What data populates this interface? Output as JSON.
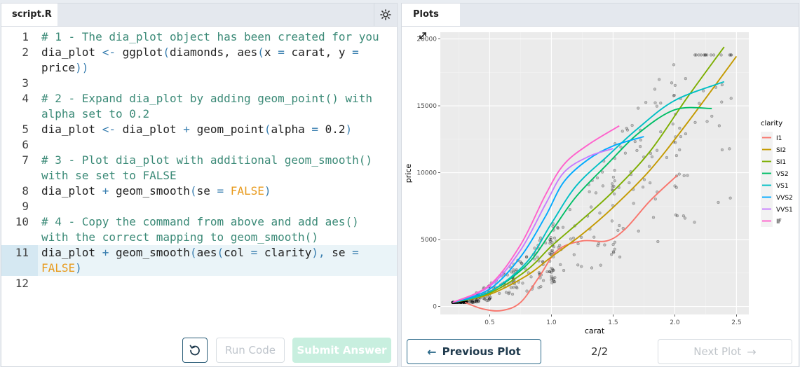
{
  "editor": {
    "tab_label": "script.R",
    "lines": [
      {
        "n": "1",
        "tokens": [
          [
            "cm",
            "# 1 - The dia_plot object has been created for you"
          ]
        ]
      },
      {
        "n": "2",
        "tokens": [
          [
            "fn",
            "dia_plot "
          ],
          [
            "op",
            "<-"
          ],
          [
            "fn",
            " ggplot"
          ],
          [
            "op",
            "("
          ],
          [
            "fn",
            "diamonds, aes"
          ],
          [
            "op",
            "("
          ],
          [
            "fn",
            "x "
          ],
          [
            "op",
            "="
          ],
          [
            "fn",
            " carat, y "
          ],
          [
            "op",
            "="
          ],
          [
            "fn",
            "\nprice"
          ],
          [
            "op",
            "))"
          ]
        ]
      },
      {
        "n": "3",
        "tokens": [
          [
            "fn",
            " "
          ]
        ]
      },
      {
        "n": "4",
        "tokens": [
          [
            "cm",
            "# 2 - Expand dia_plot by adding geom_point() with\nalpha set to 0.2"
          ]
        ]
      },
      {
        "n": "5",
        "tokens": [
          [
            "fn",
            "dia_plot "
          ],
          [
            "op",
            "<-"
          ],
          [
            "fn",
            " dia_plot "
          ],
          [
            "op",
            "+"
          ],
          [
            "fn",
            " geom_point"
          ],
          [
            "op",
            "("
          ],
          [
            "fn",
            "alpha "
          ],
          [
            "op",
            "="
          ],
          [
            "num",
            " 0.2"
          ],
          [
            "op",
            ")"
          ]
        ]
      },
      {
        "n": "6",
        "tokens": [
          [
            "fn",
            " "
          ]
        ]
      },
      {
        "n": "7",
        "tokens": [
          [
            "cm",
            "# 3 - Plot dia_plot with additional geom_smooth()\nwith se set to FALSE"
          ]
        ]
      },
      {
        "n": "8",
        "tokens": [
          [
            "fn",
            "dia_plot "
          ],
          [
            "op",
            "+"
          ],
          [
            "fn",
            " geom_smooth"
          ],
          [
            "op",
            "("
          ],
          [
            "fn",
            "se "
          ],
          [
            "op",
            "="
          ],
          [
            "kw",
            " FALSE"
          ],
          [
            "op",
            ")"
          ]
        ]
      },
      {
        "n": "9",
        "tokens": [
          [
            "fn",
            " "
          ]
        ]
      },
      {
        "n": "10",
        "tokens": [
          [
            "cm",
            "# 4 - Copy the command from above and add aes()\nwith the correct mapping to geom_smooth()"
          ]
        ]
      },
      {
        "n": "11",
        "tokens": [
          [
            "fn",
            "dia_plot "
          ],
          [
            "op",
            "+"
          ],
          [
            "fn",
            " geom_smooth"
          ],
          [
            "op",
            "("
          ],
          [
            "fn",
            "aes"
          ],
          [
            "op",
            "("
          ],
          [
            "fn",
            "col "
          ],
          [
            "op",
            "="
          ],
          [
            "fn",
            " clarity"
          ],
          [
            "op",
            "),"
          ],
          [
            "fn",
            " se "
          ],
          [
            "op",
            "="
          ],
          [
            "kw",
            "\nFALSE"
          ],
          [
            "op",
            ")"
          ]
        ]
      },
      {
        "n": "12",
        "tokens": [
          [
            "fn",
            " "
          ]
        ]
      }
    ],
    "active_line": "11"
  },
  "buttons": {
    "run_label": "Run Code",
    "submit_label": "Submit Answer",
    "prev_label": "Previous Plot",
    "next_label": "Next Plot"
  },
  "plots": {
    "tab_label": "Plots",
    "pager": "2/2"
  },
  "chart_data": {
    "type": "line",
    "xlabel": "carat",
    "ylabel": "price",
    "x_ticks": [
      "0.5",
      "1.0",
      "1.5",
      "2.0",
      "2.5"
    ],
    "y_ticks": [
      "0",
      "5000",
      "10000",
      "15000",
      "20000"
    ],
    "xlim": [
      0.1,
      2.6
    ],
    "ylim": [
      -600,
      20500
    ],
    "grid": true,
    "legend_title": "clarity",
    "legend_position": "right",
    "series": [
      {
        "name": "I1",
        "color": "#f8766d",
        "points": [
          [
            0.3,
            300
          ],
          [
            0.45,
            -200
          ],
          [
            0.6,
            -300
          ],
          [
            0.75,
            300
          ],
          [
            0.9,
            2200
          ],
          [
            1.05,
            4200
          ],
          [
            1.25,
            4900
          ],
          [
            1.45,
            4900
          ],
          [
            1.6,
            5800
          ],
          [
            1.8,
            7900
          ],
          [
            2.02,
            9800
          ]
        ]
      },
      {
        "name": "SI2",
        "color": "#c49a00",
        "points": [
          [
            0.2,
            300
          ],
          [
            0.5,
            900
          ],
          [
            0.8,
            2300
          ],
          [
            1.0,
            3700
          ],
          [
            1.25,
            5400
          ],
          [
            1.5,
            7400
          ],
          [
            1.8,
            10200
          ],
          [
            2.1,
            13700
          ],
          [
            2.5,
            18700
          ]
        ]
      },
      {
        "name": "SI1",
        "color": "#7cae00",
        "points": [
          [
            0.2,
            300
          ],
          [
            0.5,
            1000
          ],
          [
            0.8,
            2700
          ],
          [
            1.0,
            4500
          ],
          [
            1.25,
            6500
          ],
          [
            1.5,
            8600
          ],
          [
            1.8,
            11600
          ],
          [
            2.1,
            15600
          ],
          [
            2.4,
            19400
          ]
        ]
      },
      {
        "name": "VS2",
        "color": "#00be67",
        "points": [
          [
            0.2,
            300
          ],
          [
            0.5,
            1100
          ],
          [
            0.8,
            3100
          ],
          [
            1.0,
            5600
          ],
          [
            1.2,
            8200
          ],
          [
            1.45,
            10600
          ],
          [
            1.7,
            12900
          ],
          [
            2.0,
            14700
          ],
          [
            2.3,
            14800
          ]
        ]
      },
      {
        "name": "VS1",
        "color": "#00bfc4",
        "points": [
          [
            0.2,
            300
          ],
          [
            0.5,
            1100
          ],
          [
            0.8,
            3300
          ],
          [
            1.0,
            6200
          ],
          [
            1.2,
            9000
          ],
          [
            1.45,
            11200
          ],
          [
            1.7,
            13300
          ],
          [
            2.0,
            15400
          ],
          [
            2.4,
            16800
          ]
        ]
      },
      {
        "name": "VVS2",
        "color": "#00a9ff",
        "points": [
          [
            0.2,
            300
          ],
          [
            0.5,
            1300
          ],
          [
            0.75,
            3700
          ],
          [
            0.95,
            6700
          ],
          [
            1.1,
            9300
          ],
          [
            1.3,
            11000
          ],
          [
            1.5,
            12000
          ],
          [
            1.75,
            12700
          ]
        ]
      },
      {
        "name": "VVS1",
        "color": "#c77cff",
        "points": [
          [
            0.2,
            300
          ],
          [
            0.5,
            1500
          ],
          [
            0.75,
            4200
          ],
          [
            0.95,
            7600
          ],
          [
            1.1,
            10000
          ],
          [
            1.3,
            11200
          ],
          [
            1.5,
            11800
          ]
        ]
      },
      {
        "name": "IF",
        "color": "#ff61cc",
        "points": [
          [
            0.2,
            300
          ],
          [
            0.5,
            1600
          ],
          [
            0.75,
            4600
          ],
          [
            0.95,
            8300
          ],
          [
            1.1,
            10600
          ],
          [
            1.3,
            12100
          ],
          [
            1.55,
            13500
          ]
        ]
      }
    ]
  }
}
